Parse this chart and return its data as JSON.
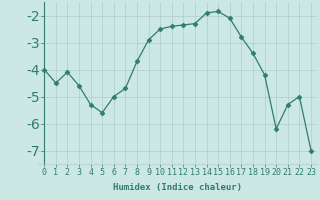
{
  "x": [
    0,
    1,
    2,
    3,
    4,
    5,
    6,
    7,
    8,
    9,
    10,
    11,
    12,
    13,
    14,
    15,
    16,
    17,
    18,
    19,
    20,
    21,
    22,
    23
  ],
  "y": [
    -4.0,
    -4.5,
    -4.1,
    -4.6,
    -5.3,
    -5.6,
    -5.0,
    -4.7,
    -3.7,
    -2.9,
    -2.5,
    -2.4,
    -2.35,
    -2.3,
    -1.9,
    -1.85,
    -2.1,
    -2.8,
    -3.4,
    -4.2,
    -6.2,
    -5.3,
    -5.0,
    -7.0
  ],
  "xlabel": "Humidex (Indice chaleur)",
  "ylabel": "",
  "xlim": [
    -0.5,
    23.5
  ],
  "ylim": [
    -7.5,
    -1.5
  ],
  "yticks": [
    -7,
    -6,
    -5,
    -4,
    -3,
    -2
  ],
  "xticks": [
    0,
    1,
    2,
    3,
    4,
    5,
    6,
    7,
    8,
    9,
    10,
    11,
    12,
    13,
    14,
    15,
    16,
    17,
    18,
    19,
    20,
    21,
    22,
    23
  ],
  "line_color": "#2e7d6e",
  "marker": "D",
  "marker_size": 2.5,
  "bg_color": "#cce8e4",
  "grid_color": "#b0cbc8",
  "label_fontsize": 6.5,
  "tick_fontsize": 6.0
}
